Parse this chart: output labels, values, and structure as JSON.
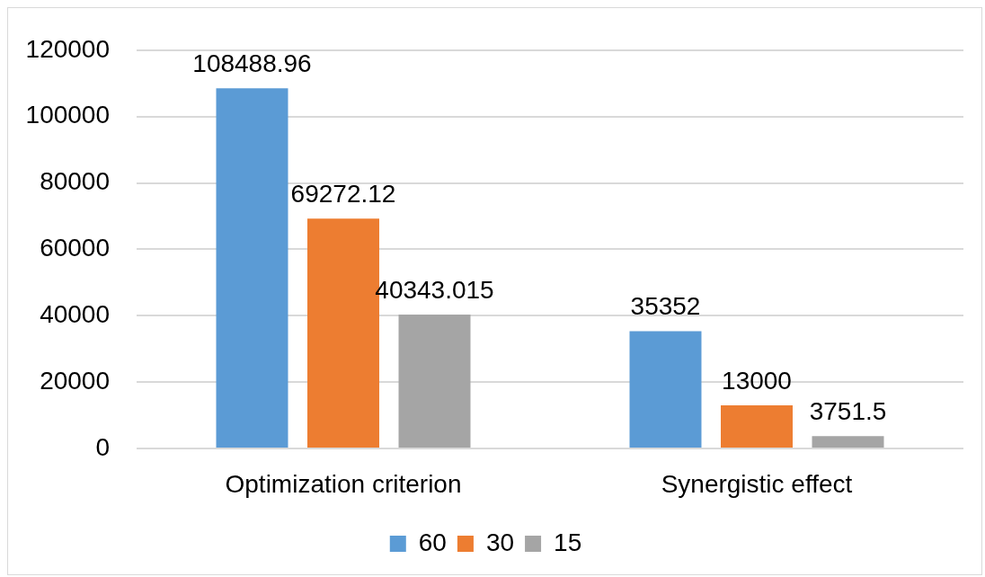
{
  "chart_data": {
    "type": "bar",
    "categories": [
      "Optimization criterion",
      "Synergistic effect"
    ],
    "series": [
      {
        "name": "60",
        "color": "#5b9bd5",
        "values": [
          108488.96,
          35352
        ]
      },
      {
        "name": "30",
        "color": "#ed7d31",
        "values": [
          69272.12,
          13000
        ]
      },
      {
        "name": "15",
        "color": "#a5a5a5",
        "values": [
          40343.015,
          3751.5
        ]
      }
    ],
    "ylim": [
      0,
      120000
    ],
    "yticks": [
      0,
      20000,
      40000,
      60000,
      80000,
      100000,
      120000
    ],
    "grid": "y",
    "legend": "bottom",
    "data_labels": true
  }
}
